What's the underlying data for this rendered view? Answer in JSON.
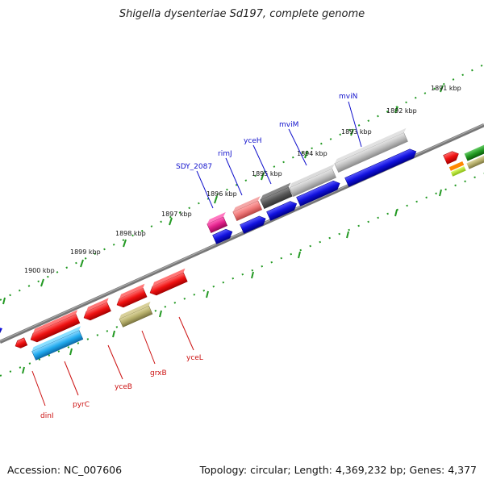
{
  "title": "Shigella dysenteriae Sd197, complete genome",
  "footer": {
    "accession": "Accession: NC_007606",
    "summary": "Topology: circular; Length: 4,369,232 bp; Genes: 4,377"
  },
  "ticks": [
    "1891 kbp",
    "1892 kbp",
    "1893 kbp",
    "1894 kbp",
    "1895 kbp",
    "1896 kbp",
    "1897 kbp",
    "1898 kbp",
    "1899 kbp",
    "1900 kbp"
  ],
  "labels_top": [
    "mviN",
    "mviM",
    "yceH",
    "rimJ",
    "SDY_2087"
  ],
  "labels_bottom": [
    "dinI",
    "pyrC",
    "yceB",
    "grxB",
    "yceL"
  ],
  "colors": {
    "red": "#ee1111",
    "blue": "#1111dd",
    "gray": "#b8b8b8",
    "dark_gray": "#555555",
    "salmon": "#ee7777",
    "magenta": "#e0208a",
    "cyan": "#22aaee",
    "olive": "#b5ae6a",
    "label_blue": "#1111cc",
    "label_red": "#cc1111",
    "tick_green": "#229922"
  }
}
